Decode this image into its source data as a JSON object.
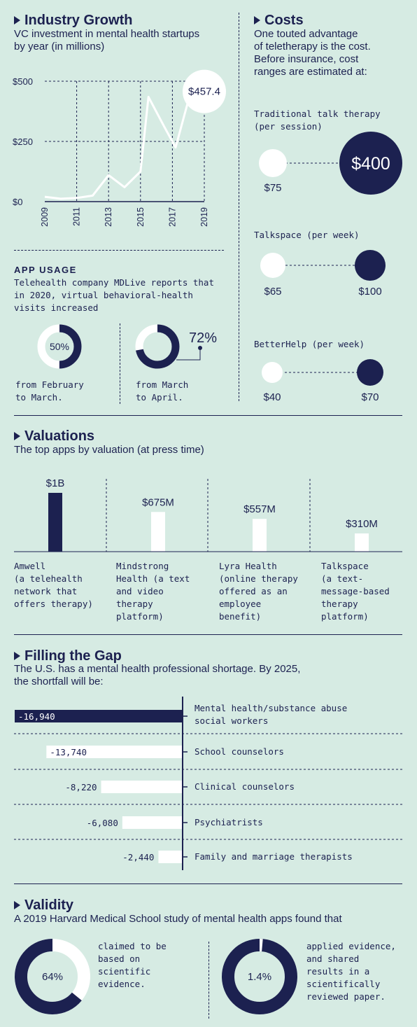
{
  "colors": {
    "background": "#d6ebe3",
    "navy": "#1c2150",
    "white": "#ffffff"
  },
  "industry": {
    "title": "Industry Growth",
    "subtitle_lines": [
      "VC investment in mental health startups",
      "by year (in millions)"
    ],
    "callout": "$457.4"
  },
  "costs": {
    "title": "Costs",
    "subtitle_lines": [
      "One touted advantage",
      "of teletherapy is the cost.",
      "Before insurance, cost",
      "ranges are estimated at:"
    ],
    "traditional": {
      "label_lines": [
        "Traditional talk therapy",
        "(per session)"
      ],
      "low": "$75",
      "high": "$400"
    },
    "talkspace": {
      "label": "Talkspace (per week)",
      "low": "$65",
      "high": "$100"
    },
    "betterhelp": {
      "label": "BetterHelp (per week)",
      "low": "$40",
      "high": "$70"
    }
  },
  "app_usage": {
    "title": "APP USAGE",
    "desc_lines": [
      "Telehealth company MDLive reports that",
      "in 2020, virtual behavioral-health",
      "visits increased"
    ],
    "first": {
      "value": "50%",
      "fraction": 0.5,
      "caption_lines": [
        "from February",
        "to March."
      ]
    },
    "second": {
      "value": "72%",
      "fraction": 0.72,
      "caption_lines": [
        "from March",
        "to April."
      ]
    }
  },
  "valuations": {
    "title": "Valuations",
    "subtitle": "The top apps by valuation (at press time)",
    "apps": [
      {
        "value_label": "$1B",
        "desc_lines": [
          "Amwell",
          "(a telehealth",
          "network that",
          "offers therapy)"
        ]
      },
      {
        "value_label": "$675M",
        "desc_lines": [
          "Mindstrong",
          "Health (a text",
          "and video",
          "therapy",
          "platform)"
        ]
      },
      {
        "value_label": "$557M",
        "desc_lines": [
          "Lyra Health",
          "(online therapy",
          "offered as an",
          "employee",
          "benefit)"
        ]
      },
      {
        "value_label": "$310M",
        "desc_lines": [
          "Talkspace",
          "(a text-",
          "message-based",
          "therapy",
          "platform)"
        ]
      }
    ]
  },
  "gap": {
    "title": "Filling the Gap",
    "subtitle_lines": [
      "The U.S. has a mental health professional shortage. By 2025,",
      "the shortfall will be:"
    ],
    "rows": [
      {
        "value_label": "-16,940",
        "label_lines": [
          "Mental health/substance abuse",
          "social workers"
        ]
      },
      {
        "value_label": "-13,740",
        "label_lines": [
          "School counselors"
        ]
      },
      {
        "value_label": "-8,220",
        "label_lines": [
          "Clinical counselors"
        ]
      },
      {
        "value_label": "-6,080",
        "label_lines": [
          "Psychiatrists"
        ]
      },
      {
        "value_label": "-2,440",
        "label_lines": [
          "Family and marriage therapists"
        ]
      }
    ]
  },
  "validity": {
    "title": "Validity",
    "subtitle": "A 2019 Harvard Medical School study of mental health apps found that",
    "first": {
      "value": "64%",
      "fraction": 0.64,
      "caption_lines": [
        "claimed to be",
        "based on",
        "scientific",
        "evidence."
      ]
    },
    "second": {
      "value": "1.4%",
      "fraction": 0.014,
      "caption_lines": [
        "applied evidence,",
        "and shared",
        "results in a",
        "scientifically",
        "reviewed paper."
      ]
    }
  },
  "chart_data": [
    {
      "type": "line",
      "title": "Industry Growth",
      "subtitle": "VC investment in mental health startups by year (in millions)",
      "x": [
        2009,
        2010,
        2011,
        2012,
        2013,
        2014,
        2015,
        2015.5,
        2016.5,
        2017.2,
        2018,
        2019
      ],
      "x_ticks": [
        "2009",
        "2011",
        "2013",
        "2015",
        "2017",
        "2019"
      ],
      "y_ticks": [
        "$0",
        "$250",
        "$500"
      ],
      "ylim": [
        0,
        500
      ],
      "series": [
        {
          "values": [
            20,
            12,
            15,
            25,
            110,
            60,
            125,
            435,
            310,
            225,
            420,
            457.4
          ]
        }
      ],
      "annotations": [
        "$457.4"
      ]
    },
    {
      "type": "bar",
      "title": "Valuations",
      "categories": [
        "Amwell",
        "Mindstrong Health",
        "Lyra Health",
        "Talkspace"
      ],
      "values": [
        1000,
        675,
        557,
        310
      ],
      "units": "millions of dollars"
    },
    {
      "type": "bar",
      "orientation": "horizontal",
      "title": "Filling the Gap",
      "categories": [
        "Mental health/substance abuse social workers",
        "School counselors",
        "Clinical counselors",
        "Psychiatrists",
        "Family and marriage therapists"
      ],
      "values": [
        -16940,
        -13740,
        -8220,
        -6080,
        -2440
      ]
    }
  ]
}
